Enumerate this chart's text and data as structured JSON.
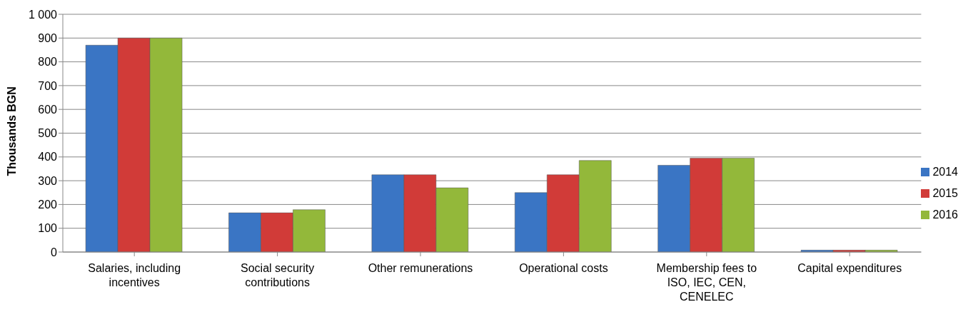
{
  "chart_data": {
    "type": "bar",
    "ylabel": "Thousands  BGN",
    "categories": [
      "Salaries, including incentives",
      "Social security contributions",
      "Other remunerations",
      "Operational costs",
      "Membership fees to ISO, IEC, CEN, CENELEC",
      "Capital expenditures"
    ],
    "series": [
      {
        "name": "2014",
        "color": "#3a75c4",
        "values": [
          870,
          165,
          325,
          250,
          365,
          8
        ]
      },
      {
        "name": "2015",
        "color": "#d13b38",
        "values": [
          900,
          165,
          325,
          325,
          395,
          8
        ]
      },
      {
        "name": "2016",
        "color": "#93b83a",
        "values": [
          900,
          178,
          270,
          385,
          395,
          8
        ]
      }
    ],
    "ylim": [
      0,
      1000
    ],
    "yticks": [
      0,
      100,
      200,
      300,
      400,
      500,
      600,
      700,
      800,
      900,
      {
        "value": 1000,
        "label": "1 000"
      }
    ],
    "grid": "y",
    "legend": "right"
  }
}
